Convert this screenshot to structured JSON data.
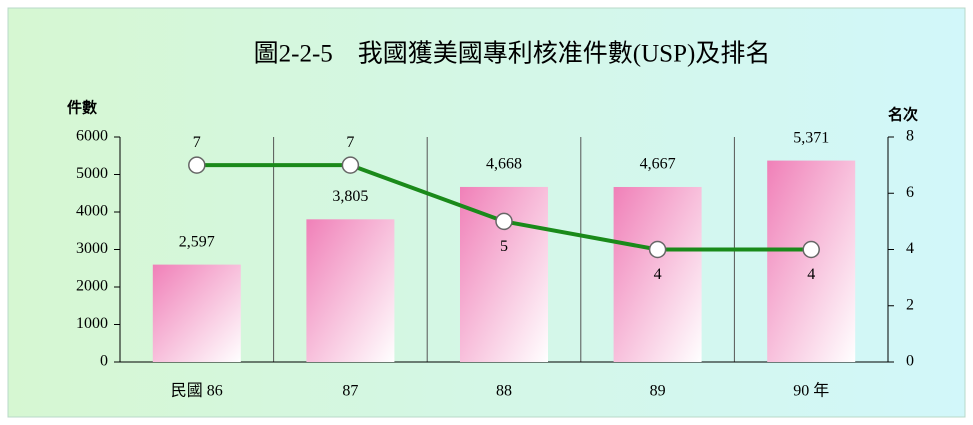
{
  "chart_data": {
    "type": "bar",
    "title": "圖2-2-5　我國獲美國專利核准件數(USP)及排名",
    "y_label": "件數",
    "y2_label": "名次",
    "categories": [
      "民國 86",
      "87",
      "88",
      "89",
      "90 年"
    ],
    "series": [
      {
        "type": "bar",
        "color": "#f080b8",
        "values": [
          2597,
          3805,
          4668,
          4667,
          5371
        ],
        "value_labels": [
          "2,597",
          "3,805",
          "4,668",
          "4,667",
          "5,371"
        ]
      },
      {
        "type": "line",
        "axis": "y2",
        "color": "#1a8a1a",
        "values": [
          7,
          7,
          5,
          4,
          4
        ]
      }
    ],
    "ylim": [
      0,
      6000
    ],
    "yticks": [
      0,
      1000,
      2000,
      3000,
      4000,
      5000,
      6000
    ],
    "y2lim": [
      0,
      8
    ],
    "y2ticks": [
      0,
      2,
      4,
      6,
      8
    ]
  }
}
